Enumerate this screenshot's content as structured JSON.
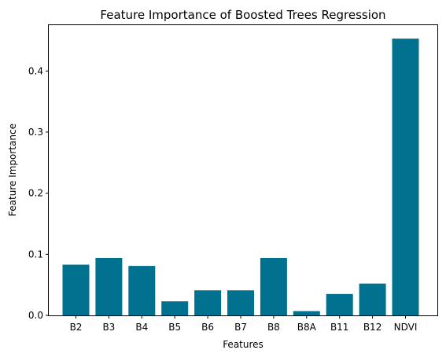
{
  "chart_data": {
    "type": "bar",
    "title": "Feature Importance of Boosted Trees Regression",
    "xlabel": "Features",
    "ylabel": "Feature Importance",
    "categories": [
      "B2",
      "B3",
      "B4",
      "B5",
      "B6",
      "B7",
      "B8",
      "B8A",
      "B11",
      "B12",
      "NDVI"
    ],
    "values": [
      0.083,
      0.094,
      0.081,
      0.023,
      0.041,
      0.041,
      0.094,
      0.007,
      0.035,
      0.052,
      0.453
    ],
    "ylim": [
      0,
      0.475
    ],
    "yticks": [
      0.0,
      0.1,
      0.2,
      0.3,
      0.4
    ],
    "ytick_labels": [
      "0.0",
      "0.1",
      "0.2",
      "0.3",
      "0.4"
    ],
    "grid": false,
    "legend": "none",
    "bar_color": "#00728f"
  }
}
